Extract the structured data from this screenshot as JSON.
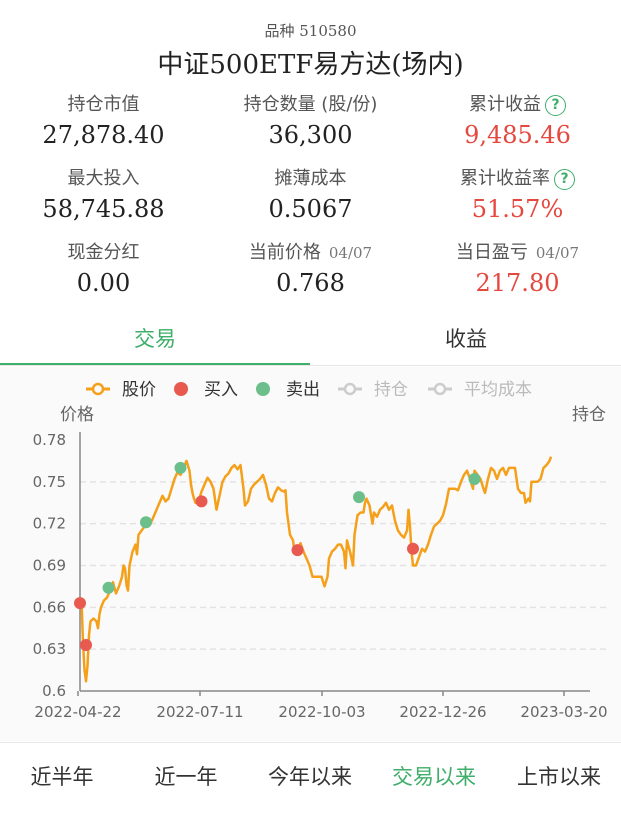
{
  "header": {
    "code_label": "品种 510580",
    "fund_name": "中证500ETF易方达(场内)"
  },
  "stats": [
    {
      "label": "持仓市值",
      "sub": "",
      "value": "27,878.40",
      "highlight": false,
      "help": false
    },
    {
      "label": "持仓数量 (股/份)",
      "sub": "",
      "value": "36,300",
      "highlight": false,
      "help": false
    },
    {
      "label": "累计收益",
      "sub": "",
      "value": "9,485.46",
      "highlight": true,
      "help": true
    },
    {
      "label": "最大投入",
      "sub": "",
      "value": "58,745.88",
      "highlight": false,
      "help": false
    },
    {
      "label": "摊薄成本",
      "sub": "",
      "value": "0.5067",
      "highlight": false,
      "help": false
    },
    {
      "label": "累计收益率",
      "sub": "",
      "value": "51.57%",
      "highlight": true,
      "help": true
    },
    {
      "label": "现金分红",
      "sub": "",
      "value": "0.00",
      "highlight": false,
      "help": false
    },
    {
      "label": "当前价格",
      "sub": "04/07",
      "value": "0.768",
      "highlight": false,
      "help": false
    },
    {
      "label": "当日盈亏",
      "sub": "04/07",
      "value": "217.80",
      "highlight": true,
      "help": false
    }
  ],
  "tabs": [
    {
      "label": "交易",
      "active": true
    },
    {
      "label": "收益",
      "active": false
    }
  ],
  "chart_data": {
    "type": "line",
    "legend": [
      {
        "name": "股价",
        "color": "#f5a01a",
        "kind": "line",
        "enabled": true
      },
      {
        "name": "买入",
        "color": "#e85a50",
        "kind": "dot",
        "enabled": true
      },
      {
        "name": "卖出",
        "color": "#6cbf8a",
        "kind": "dot",
        "enabled": true
      },
      {
        "name": "持仓",
        "color": "#cccccc",
        "kind": "line",
        "enabled": false
      },
      {
        "name": "平均成本",
        "color": "#cccccc",
        "kind": "line",
        "enabled": false
      }
    ],
    "ylabel_left": "价格",
    "ylabel_right": "持仓",
    "ylim": [
      0.6,
      0.78
    ],
    "yticks": [
      "0.78",
      "0.75",
      "0.72",
      "0.69",
      "0.66",
      "0.63",
      "0.6"
    ],
    "xticks": [
      "2022-04-22",
      "2022-07-11",
      "2022-10-03",
      "2022-12-26",
      "2023-03-20"
    ],
    "x_range_days": [
      0,
      340
    ],
    "series": [
      {
        "name": "股价",
        "color": "#f5a01a",
        "points": [
          [
            0,
            0.662
          ],
          [
            1,
            0.665
          ],
          [
            2,
            0.635
          ],
          [
            3,
            0.615
          ],
          [
            4,
            0.607
          ],
          [
            5,
            0.618
          ],
          [
            6,
            0.64
          ],
          [
            7,
            0.65
          ],
          [
            9,
            0.652
          ],
          [
            11,
            0.65
          ],
          [
            12,
            0.645
          ],
          [
            13,
            0.655
          ],
          [
            14,
            0.66
          ],
          [
            16,
            0.665
          ],
          [
            18,
            0.667
          ],
          [
            20,
            0.672
          ],
          [
            22,
            0.678
          ],
          [
            24,
            0.67
          ],
          [
            26,
            0.675
          ],
          [
            28,
            0.682
          ],
          [
            29,
            0.69
          ],
          [
            30,
            0.688
          ],
          [
            31,
            0.676
          ],
          [
            32,
            0.672
          ],
          [
            33,
            0.69
          ],
          [
            35,
            0.7
          ],
          [
            37,
            0.705
          ],
          [
            38,
            0.698
          ],
          [
            39,
            0.712
          ],
          [
            41,
            0.715
          ],
          [
            43,
            0.718
          ],
          [
            45,
            0.722
          ],
          [
            47,
            0.72
          ],
          [
            49,
            0.725
          ],
          [
            51,
            0.73
          ],
          [
            53,
            0.735
          ],
          [
            55,
            0.74
          ],
          [
            57,
            0.736
          ],
          [
            59,
            0.738
          ],
          [
            61,
            0.745
          ],
          [
            63,
            0.752
          ],
          [
            65,
            0.757
          ],
          [
            67,
            0.755
          ],
          [
            69,
            0.76
          ],
          [
            71,
            0.765
          ],
          [
            73,
            0.758
          ],
          [
            74,
            0.748
          ],
          [
            75,
            0.742
          ],
          [
            76,
            0.738
          ],
          [
            77,
            0.735
          ],
          [
            79,
            0.736
          ],
          [
            81,
            0.743
          ],
          [
            83,
            0.748
          ],
          [
            85,
            0.753
          ],
          [
            87,
            0.75
          ],
          [
            89,
            0.745
          ],
          [
            91,
            0.73
          ],
          [
            93,
            0.74
          ],
          [
            95,
            0.75
          ],
          [
            97,
            0.754
          ],
          [
            99,
            0.756
          ],
          [
            101,
            0.76
          ],
          [
            103,
            0.762
          ],
          [
            105,
            0.759
          ],
          [
            107,
            0.762
          ],
          [
            109,
            0.745
          ],
          [
            110,
            0.733
          ],
          [
            112,
            0.736
          ],
          [
            114,
            0.745
          ],
          [
            116,
            0.748
          ],
          [
            118,
            0.75
          ],
          [
            120,
            0.752
          ],
          [
            122,
            0.755
          ],
          [
            124,
            0.748
          ],
          [
            126,
            0.738
          ],
          [
            128,
            0.736
          ],
          [
            130,
            0.742
          ],
          [
            132,
            0.746
          ],
          [
            134,
            0.744
          ],
          [
            136,
            0.743
          ],
          [
            137,
            0.744
          ],
          [
            138,
            0.728
          ],
          [
            140,
            0.712
          ],
          [
            142,
            0.708
          ],
          [
            143,
            0.7
          ],
          [
            145,
            0.7
          ],
          [
            147,
            0.706
          ],
          [
            149,
            0.7
          ],
          [
            151,
            0.695
          ],
          [
            153,
            0.69
          ],
          [
            155,
            0.682
          ],
          [
            157,
            0.682
          ],
          [
            159,
            0.682
          ],
          [
            161,
            0.682
          ],
          [
            163,
            0.675
          ],
          [
            165,
            0.682
          ],
          [
            166,
            0.695
          ],
          [
            168,
            0.7
          ],
          [
            170,
            0.702
          ],
          [
            172,
            0.705
          ],
          [
            174,
            0.705
          ],
          [
            176,
            0.7
          ],
          [
            177,
            0.688
          ],
          [
            178,
            0.708
          ],
          [
            180,
            0.7
          ],
          [
            182,
            0.69
          ],
          [
            183,
            0.712
          ],
          [
            185,
            0.726
          ],
          [
            187,
            0.728
          ],
          [
            189,
            0.728
          ],
          [
            190,
            0.735
          ],
          [
            191,
            0.738
          ],
          [
            193,
            0.733
          ],
          [
            195,
            0.72
          ],
          [
            196,
            0.728
          ],
          [
            198,
            0.725
          ],
          [
            200,
            0.73
          ],
          [
            202,
            0.732
          ],
          [
            204,
            0.735
          ],
          [
            206,
            0.73
          ],
          [
            208,
            0.733
          ],
          [
            210,
            0.722
          ],
          [
            212,
            0.715
          ],
          [
            214,
            0.712
          ],
          [
            216,
            0.71
          ],
          [
            218,
            0.715
          ],
          [
            219,
            0.73
          ],
          [
            220,
            0.718
          ],
          [
            221,
            0.7
          ],
          [
            222,
            0.69
          ],
          [
            224,
            0.69
          ],
          [
            226,
            0.696
          ],
          [
            228,
            0.702
          ],
          [
            230,
            0.7
          ],
          [
            232,
            0.705
          ],
          [
            234,
            0.712
          ],
          [
            236,
            0.718
          ],
          [
            238,
            0.72
          ],
          [
            240,
            0.722
          ],
          [
            242,
            0.726
          ],
          [
            244,
            0.734
          ],
          [
            246,
            0.745
          ],
          [
            248,
            0.745
          ],
          [
            250,
            0.745
          ],
          [
            252,
            0.744
          ],
          [
            254,
            0.75
          ],
          [
            256,
            0.755
          ],
          [
            258,
            0.758
          ],
          [
            260,
            0.752
          ],
          [
            262,
            0.745
          ],
          [
            263,
            0.758
          ],
          [
            265,
            0.755
          ],
          [
            267,
            0.752
          ],
          [
            269,
            0.745
          ],
          [
            270,
            0.742
          ],
          [
            272,
            0.752
          ],
          [
            274,
            0.76
          ],
          [
            276,
            0.758
          ],
          [
            278,
            0.752
          ],
          [
            280,
            0.758
          ],
          [
            282,
            0.76
          ],
          [
            284,
            0.755
          ],
          [
            286,
            0.76
          ],
          [
            290,
            0.76
          ],
          [
            292,
            0.745
          ],
          [
            294,
            0.742
          ],
          [
            296,
            0.742
          ],
          [
            297,
            0.735
          ],
          [
            299,
            0.738
          ],
          [
            300,
            0.736
          ],
          [
            301,
            0.75
          ],
          [
            303,
            0.75
          ],
          [
            305,
            0.75
          ],
          [
            307,
            0.752
          ],
          [
            309,
            0.76
          ],
          [
            311,
            0.762
          ],
          [
            313,
            0.765
          ],
          [
            314,
            0.768
          ]
        ]
      }
    ],
    "markers": [
      {
        "type": "买入",
        "x": 0,
        "y": 0.663
      },
      {
        "type": "买入",
        "x": 4,
        "y": 0.633
      },
      {
        "type": "卖出",
        "x": 19,
        "y": 0.674
      },
      {
        "type": "卖出",
        "x": 44,
        "y": 0.721
      },
      {
        "type": "卖出",
        "x": 67,
        "y": 0.76
      },
      {
        "type": "买入",
        "x": 81,
        "y": 0.736
      },
      {
        "type": "买入",
        "x": 145,
        "y": 0.701
      },
      {
        "type": "卖出",
        "x": 186,
        "y": 0.739
      },
      {
        "type": "买入",
        "x": 222,
        "y": 0.702
      },
      {
        "type": "卖出",
        "x": 263,
        "y": 0.752
      }
    ]
  },
  "ranges": [
    {
      "label": "近半年",
      "active": false
    },
    {
      "label": "近一年",
      "active": false
    },
    {
      "label": "今年以来",
      "active": false
    },
    {
      "label": "交易以来",
      "active": true
    },
    {
      "label": "上市以来",
      "active": false
    }
  ]
}
